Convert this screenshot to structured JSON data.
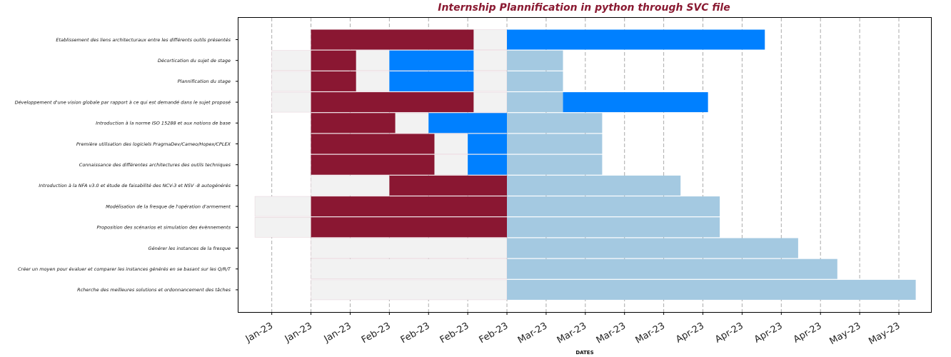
{
  "chart_data": {
    "type": "bar",
    "orientation": "horizontal",
    "title": "Internship Plannification in python through SVC file",
    "xlabel": "DATES",
    "ylabel": "",
    "grid": "vertical dashed",
    "x_tick_labels": [
      "Jan-23",
      "Jan-23",
      "Jan-23",
      "Feb-23",
      "Feb-23",
      "Feb-23",
      "Feb-23",
      "Mar-23",
      "Mar-23",
      "Mar-23",
      "Mar-23",
      "Apr-23",
      "Apr-23",
      "Apr-23",
      "Apr-23",
      "May-23",
      "May-23"
    ],
    "x_tick_values": [
      10,
      20,
      30,
      40,
      50,
      60,
      70,
      80,
      90,
      100,
      110,
      120,
      130,
      140,
      150,
      160,
      170
    ],
    "xlim": [
      1.5,
      178.2
    ],
    "colors": {
      "completed": "#8a1732",
      "in_progress": "#0080ff",
      "planned": "#a4c9e1",
      "background": "#f2f2f2",
      "title": "#8a1a32"
    },
    "tasks": [
      {
        "name": "Etablissement des liens architecturaux entre les différents outils présentés",
        "bg": [
          20,
          70
        ],
        "completed": [
          20,
          61.5
        ],
        "in_progress": [
          70,
          135.8
        ],
        "planned": null
      },
      {
        "name": "Décortication du sujet de stage",
        "bg": [
          10,
          70
        ],
        "completed": [
          20,
          31.5
        ],
        "in_progress": [
          40,
          61.5
        ],
        "planned": [
          70,
          84.3
        ]
      },
      {
        "name": "Plannification du stage",
        "bg": [
          10,
          70
        ],
        "completed": [
          20,
          31.5
        ],
        "in_progress": [
          40,
          61.5
        ],
        "planned": [
          70,
          84.3
        ]
      },
      {
        "name": "Développement d'une vision globale par rapport à ce qui est demandé dans le sujet proposé",
        "bg": [
          10,
          70
        ],
        "completed": [
          20,
          61.5
        ],
        "in_progress": [
          84.3,
          121.3
        ],
        "planned": [
          70,
          84.3
        ]
      },
      {
        "name": "Introduction à la norme ISO 15288 et aux notions de base",
        "bg": [
          20,
          70
        ],
        "completed": [
          20,
          41.5
        ],
        "in_progress": [
          50,
          70
        ],
        "planned": [
          70,
          94.3
        ]
      },
      {
        "name": "Première utilisation des logiciels PragmaDev/Cameo/Hopex/CPLEX",
        "bg": [
          20,
          70
        ],
        "completed": [
          20,
          51.5
        ],
        "in_progress": [
          60,
          70
        ],
        "planned": [
          70,
          94.3
        ]
      },
      {
        "name": "Connaissance des différentes architectures des outils techniques",
        "bg": [
          20,
          70
        ],
        "completed": [
          20,
          51.5
        ],
        "in_progress": [
          60,
          70
        ],
        "planned": [
          70,
          94.3
        ]
      },
      {
        "name": "Introduction à la NFA v3.0 et étude de faisabilité des NCV-3 et NSV -8 autogénérés",
        "bg": [
          20,
          70
        ],
        "completed": [
          40,
          70
        ],
        "in_progress": null,
        "planned": [
          70,
          114.3
        ]
      },
      {
        "name": "Modélisation de la fresque de l'opération d'armement",
        "bg": [
          5.7,
          70
        ],
        "completed": [
          20,
          70
        ],
        "in_progress": null,
        "planned": [
          70,
          124.3
        ]
      },
      {
        "name": "Proposition des scénarios et simulation des évènnements",
        "bg": [
          5.7,
          70
        ],
        "completed": [
          20,
          70
        ],
        "in_progress": null,
        "planned": [
          70,
          124.3
        ]
      },
      {
        "name": "Générer les instances de la fresque",
        "bg": [
          20,
          70
        ],
        "completed": null,
        "in_progress": null,
        "planned": [
          70,
          144.3
        ]
      },
      {
        "name": "Créer un moyen pour évaluer et comparer les instances générés en se basant sur les Q/R/T",
        "bg": [
          20,
          70
        ],
        "completed": null,
        "in_progress": null,
        "planned": [
          70,
          154.3
        ]
      },
      {
        "name": "Rcherche des meilleures solutions et ordonnancement des tâches",
        "bg": [
          20,
          70
        ],
        "completed": null,
        "in_progress": null,
        "planned": [
          70,
          174.3
        ]
      }
    ]
  }
}
